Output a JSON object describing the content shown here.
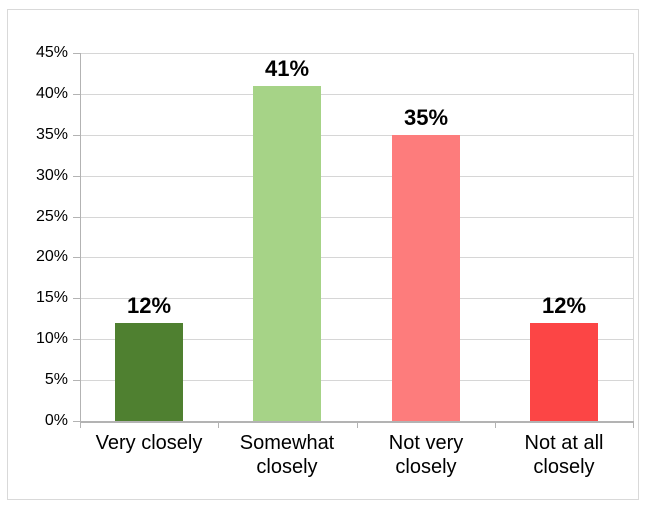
{
  "chart_data": {
    "type": "bar",
    "title": "",
    "xlabel": "",
    "ylabel": "",
    "categories": [
      "Very closely",
      "Somewhat closely",
      "Not very closely",
      "Not at all closely"
    ],
    "values": [
      12,
      41,
      35,
      12
    ],
    "value_labels": [
      "12%",
      "41%",
      "35%",
      "12%"
    ],
    "bar_colors": [
      "#4f8030",
      "#a6d387",
      "#fd7c7c",
      "#fc4545"
    ],
    "ylim": [
      0,
      45
    ],
    "y_tick_values": [
      0,
      5,
      10,
      15,
      20,
      25,
      30,
      35,
      40,
      45
    ],
    "y_tick_labels": [
      "0%",
      "5%",
      "10%",
      "15%",
      "20%",
      "25%",
      "30%",
      "35%",
      "40%",
      "45%"
    ],
    "grid": true,
    "legend": false,
    "colors": {
      "gridline": "#d6d6d6",
      "axis": "#b3b3b3",
      "frame_border": "#d9d9d9",
      "background": "#ffffff",
      "label_text": "#000000"
    }
  }
}
